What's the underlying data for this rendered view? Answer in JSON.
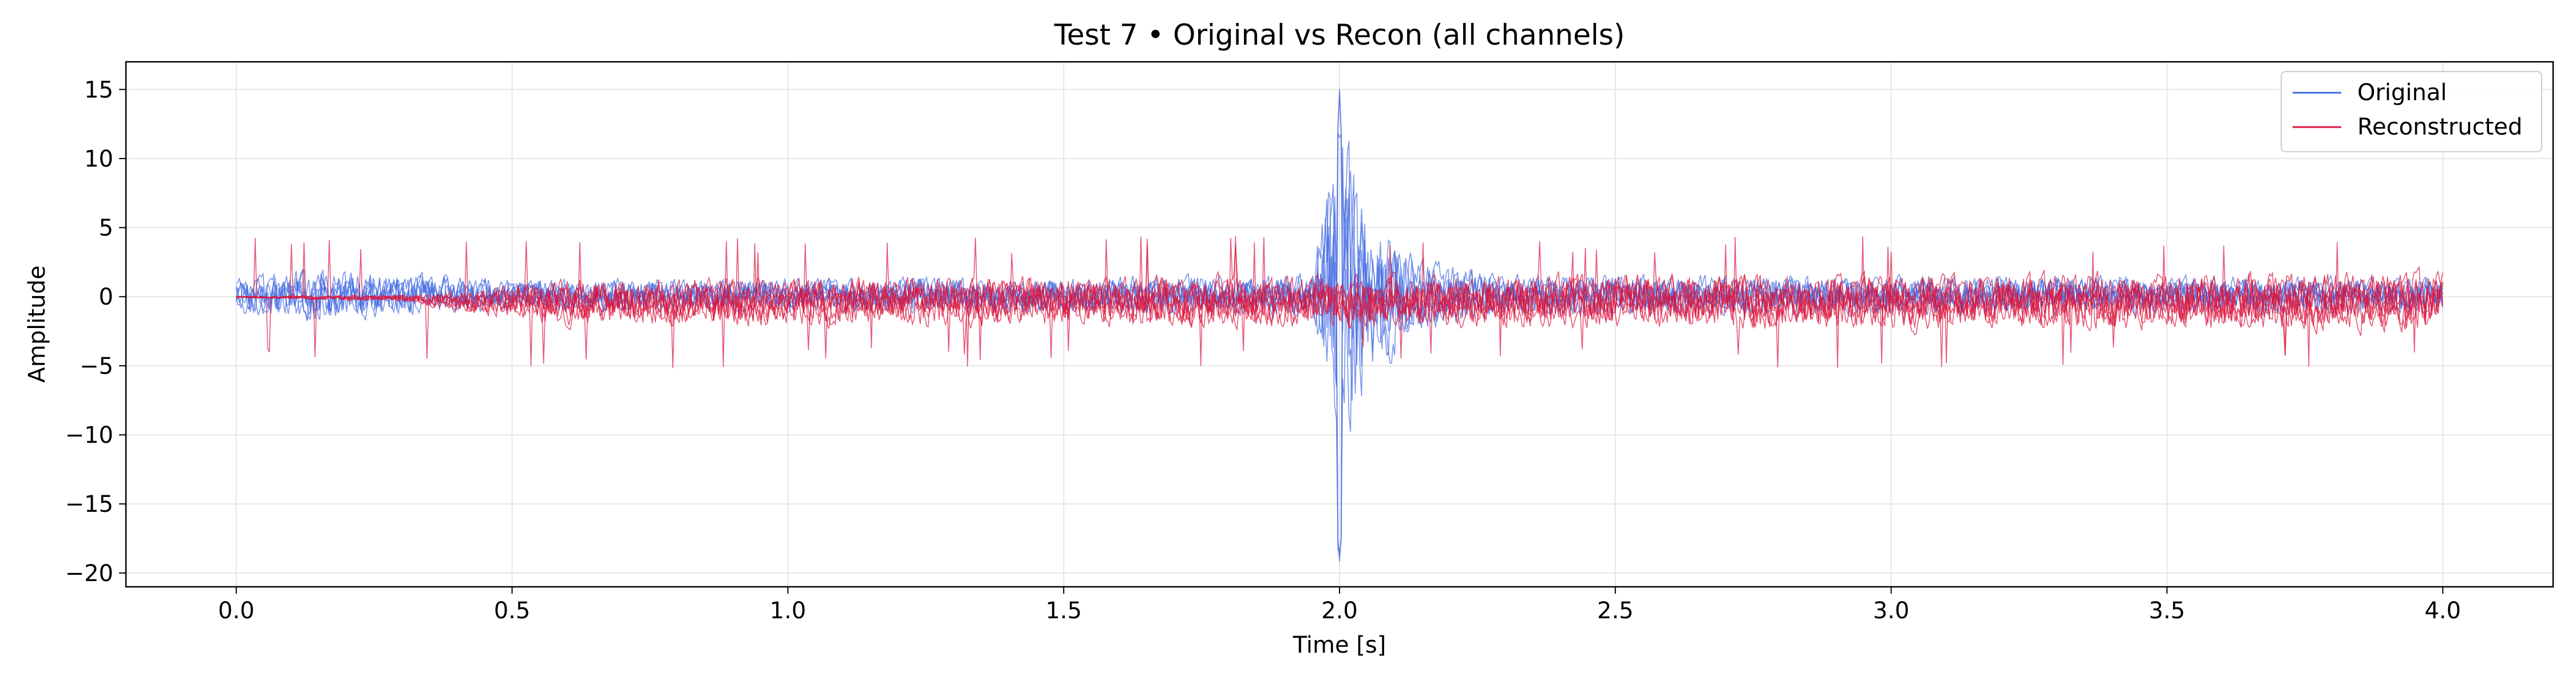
{
  "chart_data": {
    "type": "line",
    "title": "Test 7 • Original vs Recon (all channels)",
    "xlabel": "Time [s]",
    "ylabel": "Amplitude",
    "xlim": [
      -0.2,
      4.2
    ],
    "ylim": [
      -21,
      17
    ],
    "xticks": [
      0.0,
      0.5,
      1.0,
      1.5,
      2.0,
      2.5,
      3.0,
      3.5,
      4.0
    ],
    "xtick_labels": [
      "0.0",
      "0.5",
      "1.0",
      "1.5",
      "2.0",
      "2.5",
      "3.0",
      "3.5",
      "4.0"
    ],
    "yticks": [
      -20,
      -15,
      -10,
      -5,
      0,
      5,
      10,
      15
    ],
    "ytick_labels": [
      "−20",
      "−15",
      "−10",
      "−5",
      "0",
      "5",
      "10",
      "15"
    ],
    "grid": true,
    "legend_position": "top-right",
    "n_channels_per_series": 6,
    "series": [
      {
        "name": "Original",
        "color": "#4169e1",
        "amplitude_envelope": [
          {
            "t": 0.0,
            "amp": 1.5
          },
          {
            "t": 0.15,
            "amp": 2.3
          },
          {
            "t": 0.5,
            "amp": 1.3
          },
          {
            "t": 1.5,
            "amp": 1.5
          },
          {
            "t": 1.95,
            "amp": 1.8
          },
          {
            "t": 2.0,
            "amp": 15
          },
          {
            "t": 2.05,
            "amp": 7
          },
          {
            "t": 2.15,
            "amp": 3
          },
          {
            "t": 2.3,
            "amp": 1.8
          },
          {
            "t": 4.0,
            "amp": 1.5
          }
        ],
        "peak_max": 15.2,
        "peak_min": -19.2
      },
      {
        "name": "Reconstructed",
        "color": "#dc143c",
        "amplitude_envelope": [
          {
            "t": 0.0,
            "amp": 0.05
          },
          {
            "t": 0.3,
            "amp": 0.3
          },
          {
            "t": 0.6,
            "amp": 2.0
          },
          {
            "t": 4.0,
            "amp": 2.5
          }
        ],
        "peak_max": 4.4,
        "peak_min": -5.2
      }
    ]
  }
}
